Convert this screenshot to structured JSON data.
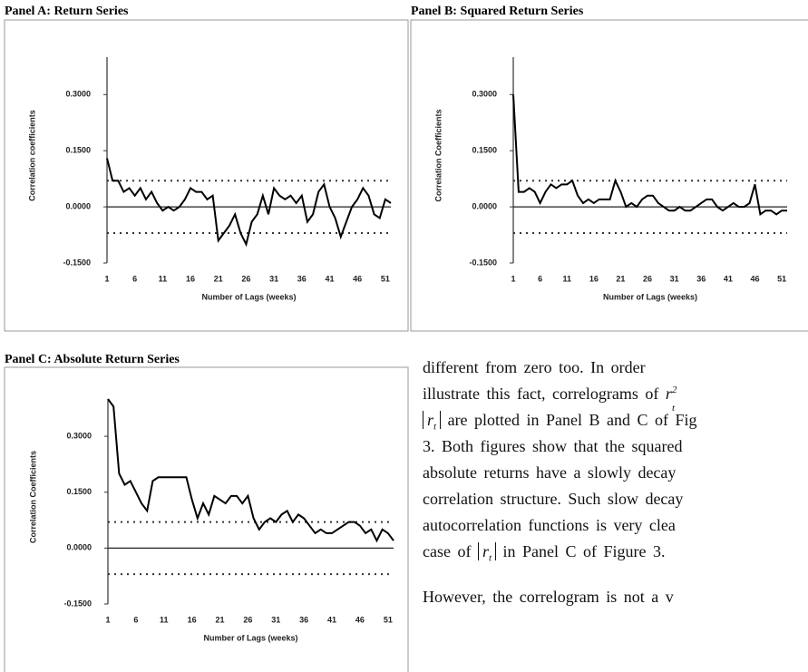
{
  "chart_data": [
    {
      "type": "line",
      "title": "Panel A: Return Series",
      "xlabel": "Number of Lags (weeks)",
      "ylabel": "Correlation coefficients",
      "x": [
        1,
        2,
        3,
        4,
        5,
        6,
        7,
        8,
        9,
        10,
        11,
        12,
        13,
        14,
        15,
        16,
        17,
        18,
        19,
        20,
        21,
        22,
        23,
        24,
        25,
        26,
        27,
        28,
        29,
        30,
        31,
        32,
        33,
        34,
        35,
        36,
        37,
        38,
        39,
        40,
        41,
        42,
        43,
        44,
        45,
        46,
        47,
        48,
        49,
        50,
        51,
        52
      ],
      "values": [
        0.13,
        0.07,
        0.07,
        0.04,
        0.05,
        0.03,
        0.05,
        0.02,
        0.04,
        0.01,
        -0.01,
        0.0,
        -0.01,
        0.0,
        0.02,
        0.05,
        0.04,
        0.04,
        0.02,
        0.03,
        -0.09,
        -0.07,
        -0.05,
        -0.02,
        -0.07,
        -0.1,
        -0.04,
        -0.02,
        0.03,
        -0.02,
        0.05,
        0.03,
        0.02,
        0.03,
        0.01,
        0.03,
        -0.04,
        -0.02,
        0.04,
        0.06,
        0.0,
        -0.03,
        -0.08,
        -0.04,
        0.0,
        0.02,
        0.05,
        0.03,
        -0.02,
        -0.03,
        0.02,
        0.01
      ],
      "color": "#000000",
      "bands": [
        0.07,
        -0.07
      ],
      "xlim": [
        1,
        52
      ],
      "xticks": [
        1,
        6,
        11,
        16,
        21,
        26,
        31,
        36,
        41,
        46,
        51
      ],
      "ylim": [
        -0.15,
        0.4
      ],
      "yticks": [
        {
          "value": 0.3,
          "label": "0.3000"
        },
        {
          "value": 0.15,
          "label": "0.1500"
        },
        {
          "value": 0,
          "label": "0.0000"
        },
        {
          "value": -0.15,
          "label": "-0.1500"
        }
      ]
    },
    {
      "type": "line",
      "title": "Panel B: Squared Return Series",
      "xlabel": "Number of Lags (weeks)",
      "ylabel": "Correlation Coefficients",
      "x": [
        1,
        2,
        3,
        4,
        5,
        6,
        7,
        8,
        9,
        10,
        11,
        12,
        13,
        14,
        15,
        16,
        17,
        18,
        19,
        20,
        21,
        22,
        23,
        24,
        25,
        26,
        27,
        28,
        29,
        30,
        31,
        32,
        33,
        34,
        35,
        36,
        37,
        38,
        39,
        40,
        41,
        42,
        43,
        44,
        45,
        46,
        47,
        48,
        49,
        50,
        51,
        52
      ],
      "values": [
        0.3,
        0.04,
        0.04,
        0.05,
        0.04,
        0.01,
        0.04,
        0.06,
        0.05,
        0.06,
        0.06,
        0.07,
        0.03,
        0.01,
        0.02,
        0.01,
        0.02,
        0.02,
        0.02,
        0.07,
        0.04,
        0.0,
        0.01,
        0.0,
        0.02,
        0.03,
        0.03,
        0.01,
        0.0,
        -0.01,
        -0.01,
        0.0,
        -0.01,
        -0.01,
        0.0,
        0.01,
        0.02,
        0.02,
        0.0,
        -0.01,
        0.0,
        0.01,
        0.0,
        0.0,
        0.01,
        0.06,
        -0.02,
        -0.01,
        -0.01,
        -0.02,
        -0.01,
        -0.01
      ],
      "color": "#000000",
      "bands": [
        0.07,
        -0.07
      ],
      "xlim": [
        1,
        52
      ],
      "xticks": [
        1,
        6,
        11,
        16,
        21,
        26,
        31,
        36,
        41,
        46,
        51
      ],
      "ylim": [
        -0.15,
        0.4
      ],
      "yticks": [
        {
          "value": 0.3,
          "label": "0.3000"
        },
        {
          "value": 0.15,
          "label": "0.1500"
        },
        {
          "value": 0,
          "label": "0.0000"
        },
        {
          "value": -0.15,
          "label": "-0.1500"
        }
      ]
    },
    {
      "type": "line",
      "title": "Panel C: Absolute Return Series",
      "xlabel": "Number of Lags (weeks)",
      "ylabel": "Correlation Coefficients",
      "x": [
        1,
        2,
        3,
        4,
        5,
        6,
        7,
        8,
        9,
        10,
        11,
        12,
        13,
        14,
        15,
        16,
        17,
        18,
        19,
        20,
        21,
        22,
        23,
        24,
        25,
        26,
        27,
        28,
        29,
        30,
        31,
        32,
        33,
        34,
        35,
        36,
        37,
        38,
        39,
        40,
        41,
        42,
        43,
        44,
        45,
        46,
        47,
        48,
        49,
        50,
        51,
        52
      ],
      "values": [
        0.4,
        0.38,
        0.2,
        0.17,
        0.18,
        0.15,
        0.12,
        0.1,
        0.18,
        0.19,
        0.19,
        0.19,
        0.19,
        0.19,
        0.19,
        0.13,
        0.08,
        0.12,
        0.09,
        0.14,
        0.13,
        0.12,
        0.14,
        0.14,
        0.12,
        0.14,
        0.08,
        0.05,
        0.07,
        0.08,
        0.07,
        0.09,
        0.1,
        0.07,
        0.09,
        0.08,
        0.06,
        0.04,
        0.05,
        0.04,
        0.04,
        0.05,
        0.06,
        0.07,
        0.07,
        0.06,
        0.04,
        0.05,
        0.02,
        0.05,
        0.04,
        0.02
      ],
      "color": "#000000",
      "bands": [
        0.07,
        -0.07
      ],
      "xlim": [
        1,
        52
      ],
      "xticks": [
        1,
        6,
        11,
        16,
        21,
        26,
        31,
        36,
        41,
        46,
        51
      ],
      "ylim": [
        -0.15,
        0.4
      ],
      "yticks": [
        {
          "value": 0.3,
          "label": "0.3000"
        },
        {
          "value": 0.15,
          "label": "0.1500"
        },
        {
          "value": 0,
          "label": "0.0000"
        },
        {
          "value": -0.15,
          "label": "-0.1500"
        }
      ]
    }
  ],
  "text": {
    "lines": [
      "different from zero too. In order",
      [
        "illustrate this fact, correlograms of ",
        {
          "var": "r",
          "sub": "t",
          "sup": "2"
        }
      ],
      [
        {
          "var": "r",
          "sub": "t"
        },
        " are plotted in Panel B and C of Fig"
      ],
      "3. Both figures show that the squared",
      "absolute returns have a slowly decay",
      "correlation structure. Such slow decay",
      "autocorrelation functions is very clea",
      [
        "case of ",
        {
          "var": "r",
          "sub": "t"
        },
        " in Panel C of Figure 3."
      ],
      "However, the correlogram is not a v"
    ]
  }
}
